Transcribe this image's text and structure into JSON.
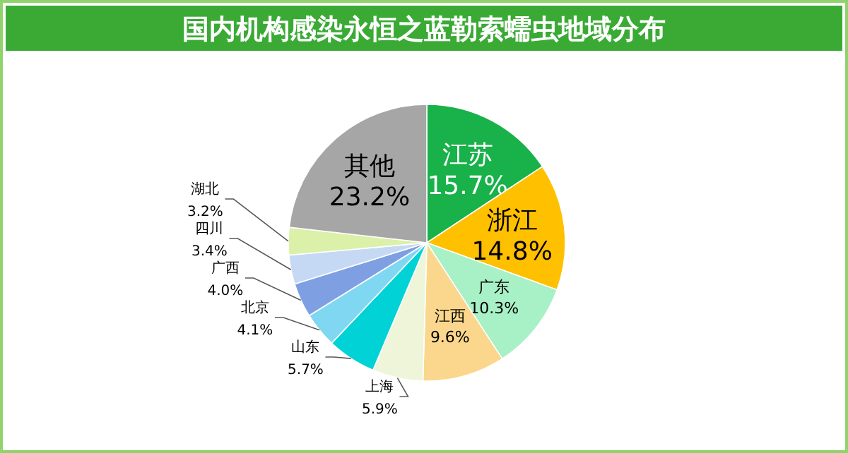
{
  "chart_data": {
    "type": "pie",
    "title": "国内机构感染永恒之蓝勒索蠕虫地域分布",
    "categories": [
      "江苏",
      "浙江",
      "广东",
      "江西",
      "上海",
      "山东",
      "北京",
      "广西",
      "四川",
      "湖北",
      "其他"
    ],
    "values": [
      15.7,
      14.8,
      10.3,
      9.6,
      5.9,
      5.7,
      4.1,
      4.0,
      3.4,
      3.2,
      23.2
    ],
    "value_labels": [
      "15.7%",
      "14.8%",
      "10.3%",
      "9.6%",
      "5.9%",
      "5.7%",
      "4.1%",
      "4.0%",
      "3.4%",
      "3.2%",
      "23.2%"
    ],
    "colors": [
      "#19b14a",
      "#ffc000",
      "#a8f0c6",
      "#fad78c",
      "#eef5d8",
      "#00d2d6",
      "#80d7f2",
      "#7f9fe3",
      "#c6d9f4",
      "#dbf0a8",
      "#a6a6a6"
    ]
  }
}
